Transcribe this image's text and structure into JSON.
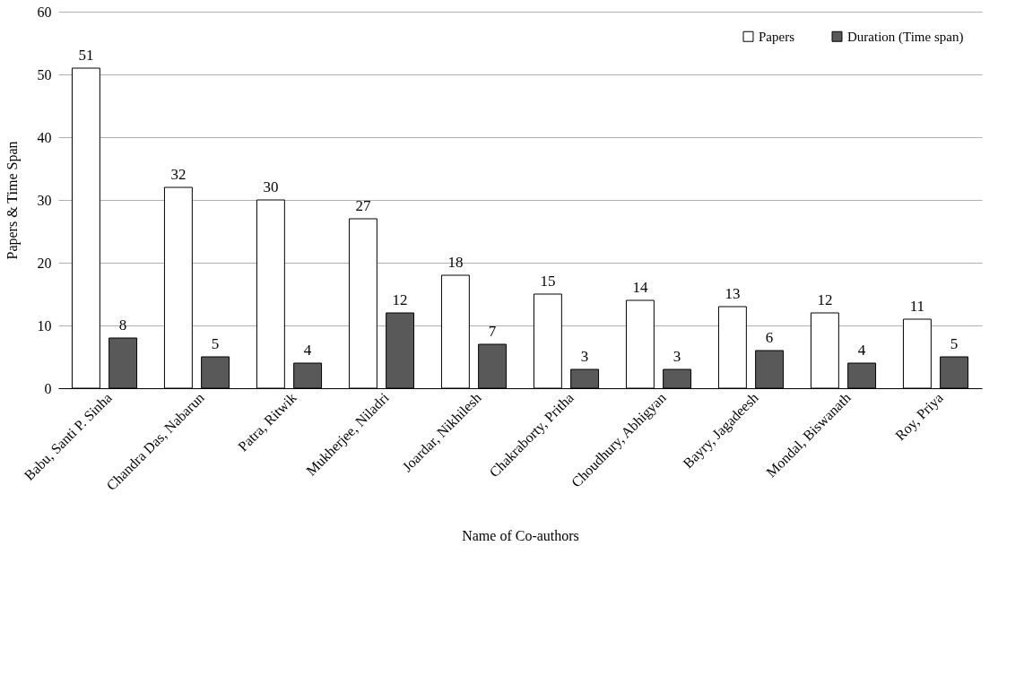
{
  "chart_data": {
    "type": "bar",
    "xlabel": "Name of Co-authors",
    "ylabel": "Papers & Time Span",
    "categories": [
      "Babu, Santi P. Sinha",
      "Chandra Das, Nabarun",
      "Patra, Ritwik",
      "Mukherjee, Niladri",
      "Joardar, Nikhilesh",
      "Chakraborty, Pritha",
      "Choudhury, Abhigyan",
      "Bayry, Jagadeesh",
      "Mondal, Biswanath",
      "Roy, Priya"
    ],
    "series": [
      {
        "name": "Papers",
        "color": "#ffffff",
        "values": [
          51,
          32,
          30,
          27,
          18,
          15,
          14,
          13,
          12,
          11
        ]
      },
      {
        "name": "Duration (Time span)",
        "color": "#595959",
        "values": [
          8,
          5,
          4,
          12,
          7,
          3,
          3,
          6,
          4,
          5
        ]
      }
    ],
    "ylim": [
      0,
      60
    ],
    "yticks": [
      0,
      10,
      20,
      30,
      40,
      50,
      60
    ],
    "grid": "y",
    "legend": "top right",
    "data_labels": true
  }
}
